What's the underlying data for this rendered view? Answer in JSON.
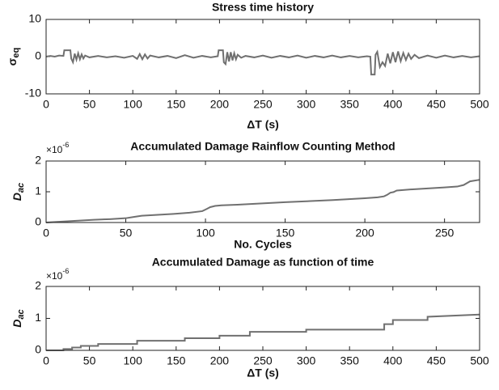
{
  "chart_data": [
    {
      "type": "line",
      "title": "Stress time history",
      "xlabel": "ΔT (s)",
      "ylabel": {
        "symbol": "σ",
        "subscript": "eq"
      },
      "x": [
        0,
        5,
        10,
        15,
        20,
        21,
        28,
        29,
        31,
        33,
        35,
        37,
        39,
        41,
        43,
        45,
        50,
        60,
        70,
        80,
        90,
        100,
        105,
        108,
        111,
        114,
        117,
        120,
        130,
        140,
        150,
        160,
        170,
        180,
        190,
        198,
        199,
        204,
        205,
        207,
        209,
        211,
        213,
        215,
        217,
        219,
        221,
        225,
        230,
        240,
        250,
        260,
        270,
        280,
        290,
        300,
        310,
        320,
        330,
        340,
        350,
        360,
        370,
        374,
        375,
        379,
        380,
        382,
        385,
        388,
        391,
        394,
        397,
        400,
        403,
        406,
        409,
        412,
        415,
        418,
        421,
        425,
        430,
        440,
        450,
        460,
        470,
        480,
        490,
        500
      ],
      "values": [
        0,
        0.2,
        0,
        0.3,
        0.2,
        1.7,
        1.7,
        -0.5,
        -1.5,
        0.8,
        -0.8,
        0.9,
        -0.7,
        0.6,
        -0.5,
        0.3,
        -0.2,
        0.2,
        -0.2,
        0.1,
        -0.3,
        0.2,
        -0.6,
        0.7,
        -0.7,
        0.6,
        -0.5,
        0.3,
        -0.2,
        0.2,
        -0.4,
        0.4,
        -0.3,
        0.2,
        -0.2,
        0.1,
        1.7,
        1.7,
        -1.5,
        -2,
        1.2,
        -1.3,
        1.2,
        -1,
        0.9,
        -0.7,
        0.5,
        -0.3,
        0.2,
        -0.2,
        0.3,
        -0.3,
        0.2,
        -0.2,
        0.3,
        -0.3,
        0.2,
        -0.2,
        0.3,
        -0.2,
        0.2,
        -0.2,
        0.1,
        0,
        -4.8,
        -4.8,
        0.5,
        1.3,
        -2.8,
        -1.5,
        -2.5,
        0.8,
        -1.8,
        1.2,
        -1.5,
        1.4,
        -1.2,
        1,
        -0.9,
        0.8,
        -0.6,
        0.5,
        -0.4,
        0.3,
        -0.3,
        0.3,
        -0.2,
        0.2,
        -0.2,
        0.1
      ],
      "color": "#707070",
      "xlim": [
        0,
        500
      ],
      "xticks": [
        0,
        50,
        100,
        150,
        200,
        250,
        300,
        350,
        400,
        450,
        500
      ],
      "ylim": [
        -10,
        10
      ],
      "yticks": [
        -10,
        0,
        10
      ]
    },
    {
      "type": "line",
      "title": "Accumulated Damage Rainflow Counting Method",
      "xlabel": "No. Cycles",
      "ylabel": {
        "symbol": "D",
        "subscript": "ac"
      },
      "y_multiplier": {
        "base": "×10",
        "exponent": "-6"
      },
      "x": [
        0,
        10,
        20,
        30,
        40,
        50,
        55,
        60,
        70,
        80,
        90,
        98,
        100,
        103,
        106,
        110,
        120,
        150,
        180,
        200,
        208,
        212,
        214,
        216,
        218,
        220,
        230,
        250,
        258,
        262,
        266,
        272
      ],
      "values": [
        0,
        0.03,
        0.06,
        0.09,
        0.11,
        0.14,
        0.18,
        0.22,
        0.25,
        0.28,
        0.32,
        0.37,
        0.42,
        0.5,
        0.54,
        0.56,
        0.58,
        0.66,
        0.73,
        0.79,
        0.82,
        0.85,
        0.9,
        0.97,
        0.99,
        1.04,
        1.08,
        1.14,
        1.17,
        1.22,
        1.34,
        1.39
      ],
      "color": "#707070",
      "xlim": [
        0,
        272
      ],
      "xticks": [
        0,
        50,
        100,
        150,
        200,
        250
      ],
      "ylim": [
        0,
        2
      ],
      "yticks": [
        0,
        1,
        2
      ]
    },
    {
      "type": "line",
      "title": "Accumulated Damage as function of time",
      "xlabel": "ΔT (s)",
      "ylabel": {
        "symbol": "D",
        "subscript": "ac"
      },
      "y_multiplier": {
        "base": "×10",
        "exponent": "-6"
      },
      "x": [
        0,
        20,
        20,
        30,
        30,
        40,
        40,
        60,
        60,
        105,
        105,
        160,
        160,
        200,
        200,
        235,
        235,
        300,
        300,
        390,
        390,
        400,
        400,
        440,
        440,
        500
      ],
      "values": [
        0,
        0,
        0.04,
        0.04,
        0.09,
        0.09,
        0.14,
        0.14,
        0.2,
        0.2,
        0.3,
        0.3,
        0.38,
        0.38,
        0.46,
        0.46,
        0.58,
        0.58,
        0.65,
        0.65,
        0.82,
        0.82,
        0.95,
        0.95,
        1.05,
        1.12
      ],
      "color": "#707070",
      "xlim": [
        0,
        500
      ],
      "xticks": [
        0,
        50,
        100,
        150,
        200,
        250,
        300,
        350,
        400,
        450,
        500
      ],
      "ylim": [
        0,
        2
      ],
      "yticks": [
        0,
        1,
        2
      ]
    }
  ]
}
